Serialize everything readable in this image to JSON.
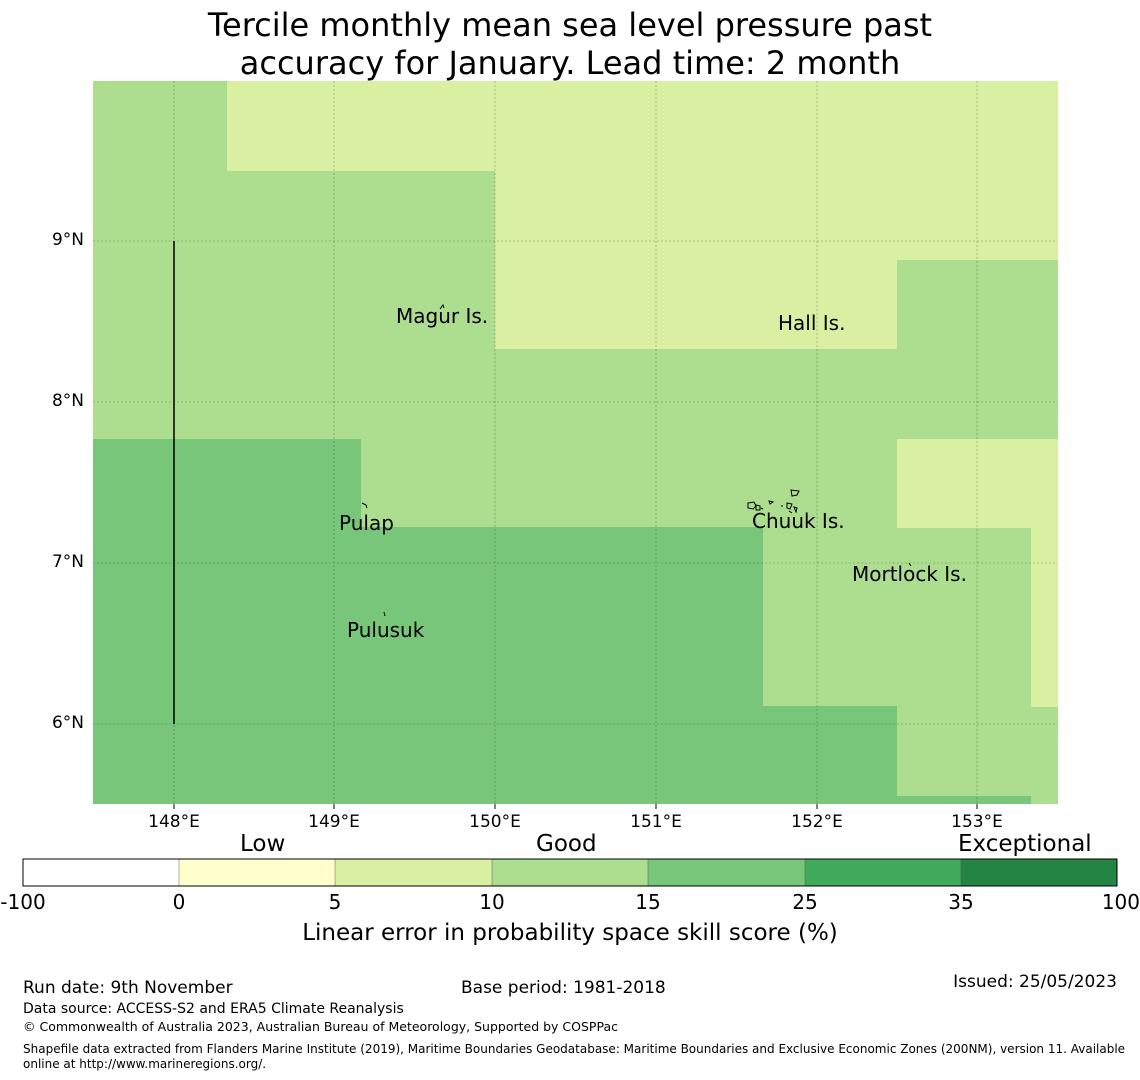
{
  "title": {
    "line1": "Tercile monthly mean sea level pressure past",
    "line2": "accuracy for January. Lead time: 2 month"
  },
  "map": {
    "lon_range": [
      147.5,
      153.5
    ],
    "lat_range": [
      5.5,
      10.0
    ],
    "lat_labels": [
      "9°N",
      "8°N",
      "7°N",
      "6°N"
    ],
    "lon_labels": [
      "148°E",
      "149°E",
      "150°E",
      "151°E",
      "152°E",
      "153°E"
    ],
    "grid": true,
    "colors": {
      "light_yellow_green": "#d9f0a3",
      "light_green": "#addd8e",
      "medium_green": "#78c679",
      "grid_line": "#333333"
    },
    "places": [
      {
        "name": "Magur Is.",
        "lon": 149.7,
        "lat": 8.52
      },
      {
        "name": "Hall Is.",
        "lon": 151.95,
        "lat": 8.48
      },
      {
        "name": "Pulap",
        "lon": 149.2,
        "lat": 7.25
      },
      {
        "name": "Chuuk Is.",
        "lon": 151.9,
        "lat": 7.26
      },
      {
        "name": "Mortlock Is.",
        "lon": 152.6,
        "lat": 6.93
      },
      {
        "name": "Pulusuk",
        "lon": 149.33,
        "lat": 6.58
      }
    ]
  },
  "colorbar": {
    "categories": [
      "Low",
      "Good",
      "Exceptional"
    ],
    "ticks": [
      "-100",
      "0",
      "5",
      "10",
      "15",
      "25",
      "35",
      "100"
    ],
    "colors": [
      "#ffffff",
      "#ffffcc",
      "#d9f0a3",
      "#addd8e",
      "#78c679",
      "#41ab5d",
      "#238443"
    ],
    "label": "Linear error in probability space skill score (%)"
  },
  "footer": {
    "run_date": "Run date: 9th November",
    "base_period": "Base period: 1981-2018",
    "issued": "Issued: 25/05/2023",
    "data_source": "Data source: ACCESS-S2 and ERA5 Climate Reanalysis",
    "copyright": "© Commonwealth of Australia 2023, Australian Bureau of Meteorology, Supported by COSPPac",
    "shapefile": "Shapefile data extracted from Flanders Marine Institute (2019), Maritime Boundaries Geodatabase: Maritime Boundaries and Exclusive Economic Zones (200NM), version 11. Available online at http://www.marineregions.org/."
  }
}
